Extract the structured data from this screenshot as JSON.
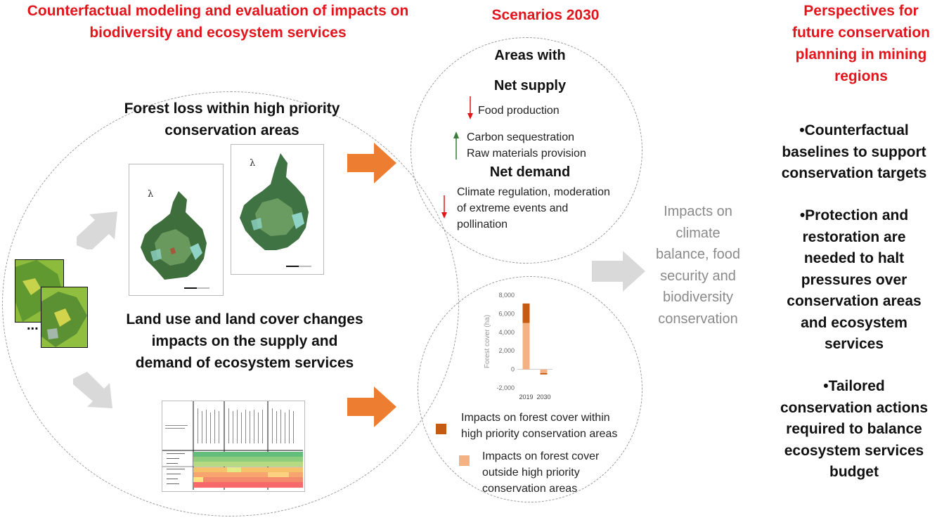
{
  "headings": {
    "left": [
      "Counterfactual modeling and evaluation of impacts on",
      "biodiversity and ecosystem services"
    ],
    "middle": "Scenarios 2030",
    "right": [
      "Perspectives for",
      "future conservation",
      "planning in mining",
      "regions"
    ]
  },
  "forest_loss_title": [
    "Forest loss within high priority",
    "conservation areas"
  ],
  "lulc_title": [
    "Land use and land cover changes",
    "impacts on the supply and",
    "demand of ecosystem services"
  ],
  "ellipsis": "...",
  "net_supply": {
    "title_lines": [
      "Areas with",
      "Net supply"
    ],
    "decrease": "Food production",
    "increase": [
      "Carbon sequestration",
      "Raw materials provision"
    ]
  },
  "net_demand": {
    "title": "Net demand",
    "decrease": [
      "Climate regulation, moderation",
      "of extreme events and",
      "pollination"
    ]
  },
  "impacts_text": [
    "Impacts on",
    "climate",
    "balance, food",
    "security and",
    "biodiversity",
    "conservation"
  ],
  "bullets": [
    [
      "•Counterfactual",
      "baselines to support",
      "conservation targets"
    ],
    [
      "•Protection and",
      "restoration are",
      "needed to halt",
      "pressures over",
      "conservation areas",
      "and ecosystem",
      "services"
    ],
    [
      "•Tailored",
      "conservation actions",
      "required to balance",
      "ecosystem services",
      "budget"
    ]
  ],
  "legend": {
    "within": [
      "Impacts on forest cover within",
      "high priority conservation areas"
    ],
    "outside": [
      "Impacts on forest cover",
      "outside high priority",
      "conservation areas"
    ]
  },
  "colors": {
    "heading_red": "#e3141b",
    "orange_arrow": "#ed7d31",
    "gray_arrow": "#d9d9d9",
    "within_series": "#c55a11",
    "outside_series": "#f4b183",
    "down_arrow": "#e3141b",
    "up_arrow": "#3a7a3a"
  },
  "chart_data": {
    "type": "bar",
    "stacked": true,
    "categories": [
      "2019",
      "2030"
    ],
    "ylabel": "Forest cover (ha)",
    "ylim": [
      -2000,
      8000
    ],
    "yticks": [
      "8,000",
      "6,000",
      "4,000",
      "2,000",
      "0",
      "-2,000"
    ],
    "series": [
      {
        "name": "Impacts on forest cover outside high priority conservation areas",
        "values": [
          5000,
          -400
        ]
      },
      {
        "name": "Impacts on forest cover within high priority conservation areas",
        "values": [
          2100,
          -150
        ]
      }
    ],
    "grid": false,
    "legend": "bottom"
  }
}
